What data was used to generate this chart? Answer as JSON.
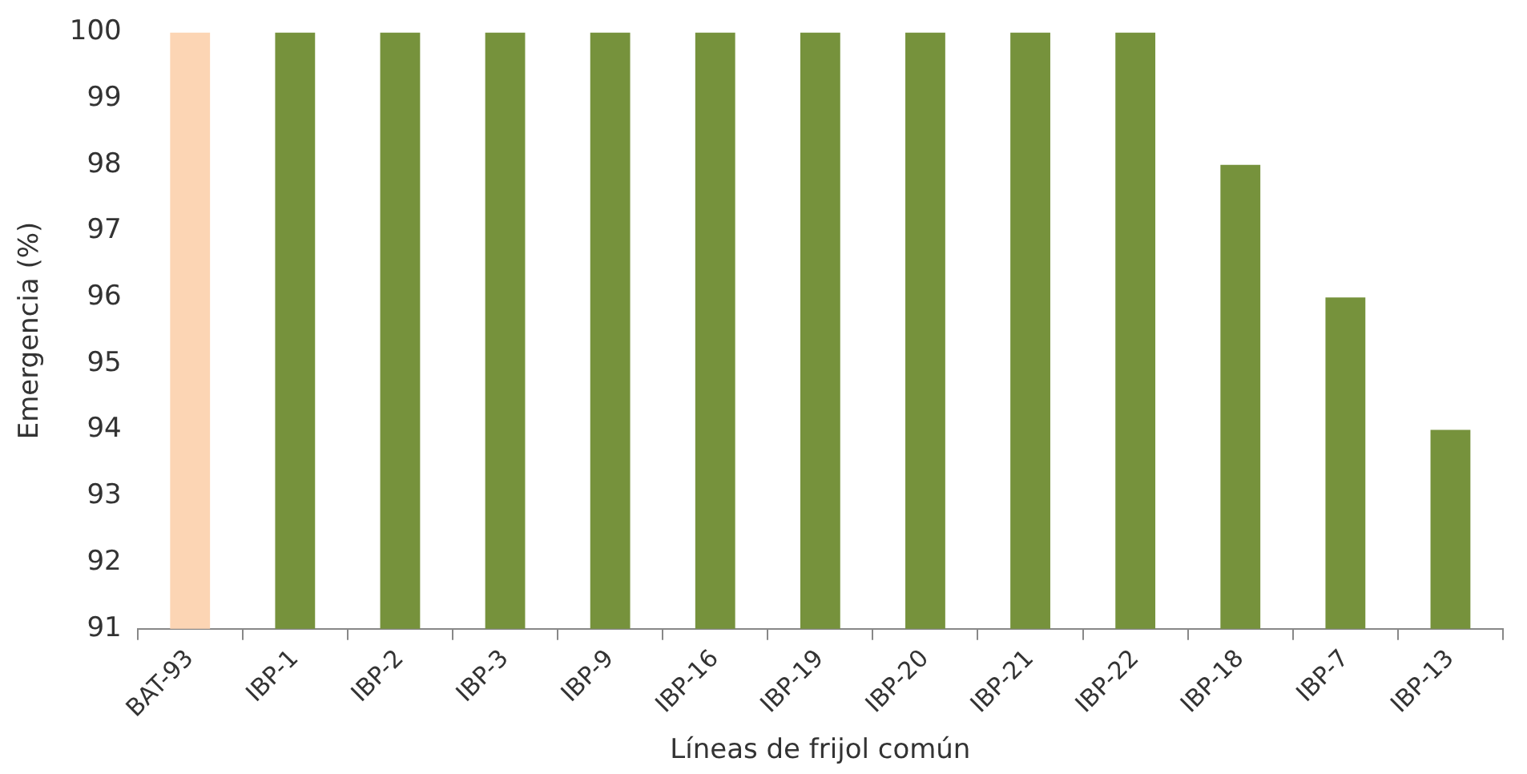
{
  "chart_data": {
    "type": "bar",
    "xlabel": "Líneas de frijol común",
    "ylabel": "Emergencia (%)",
    "categories": [
      "BAT-93",
      "IBP-1",
      "IBP-2",
      "IBP-3",
      "IBP-9",
      "IBP-16",
      "IBP-19",
      "IBP-20",
      "IBP-21",
      "IBP-22",
      "IBP-18",
      "IBP-7",
      "IBP-13"
    ],
    "values": [
      100,
      100,
      100,
      100,
      100,
      100,
      100,
      100,
      100,
      100,
      98,
      96,
      94
    ],
    "colors": [
      "#fcd5b4",
      "#76923c",
      "#76923c",
      "#76923c",
      "#76923c",
      "#76923c",
      "#76923c",
      "#76923c",
      "#76923c",
      "#76923c",
      "#76923c",
      "#76923c",
      "#76923c"
    ],
    "ylim": [
      91,
      100
    ],
    "yticks": [
      91,
      92,
      93,
      94,
      95,
      96,
      97,
      98,
      99,
      100
    ],
    "grid": false,
    "legend": false
  }
}
